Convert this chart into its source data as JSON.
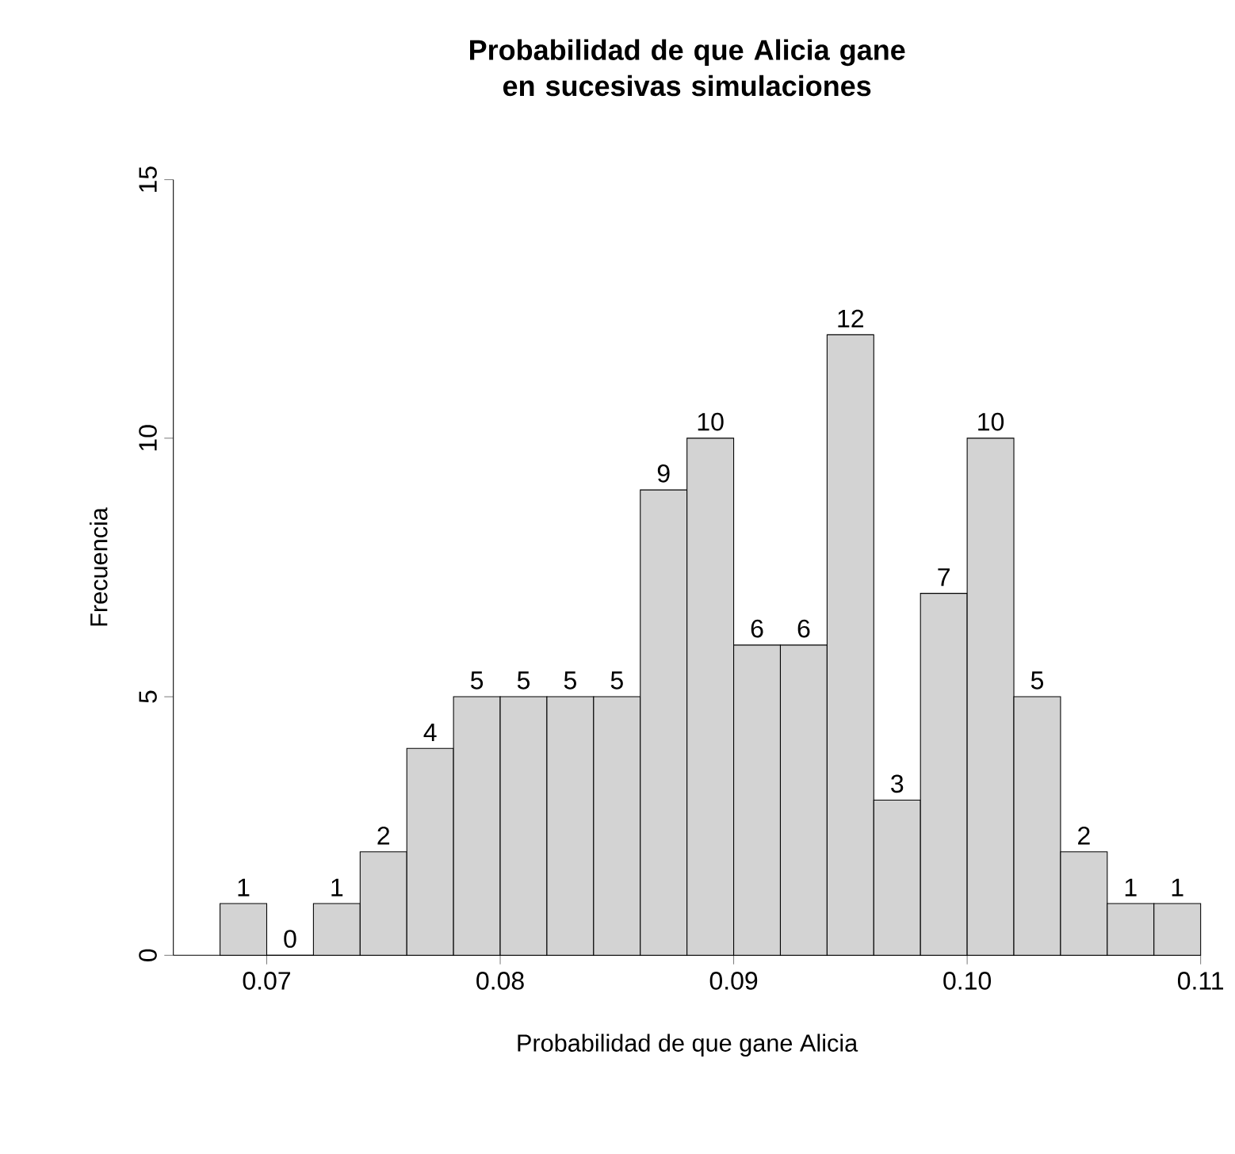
{
  "chart_data": {
    "type": "histogram",
    "title": "Probabilidad de que Alicia gane en sucesivas simulaciones",
    "xlabel": "Probabilidad de que gane Alicia",
    "ylabel": "Frecuencia",
    "bins": [
      0.068,
      0.07,
      0.072,
      0.074,
      0.076,
      0.078,
      0.08,
      0.082,
      0.084,
      0.086,
      0.088,
      0.09,
      0.092,
      0.094,
      0.096,
      0.098,
      0.1,
      0.102,
      0.104,
      0.106,
      0.108,
      0.11
    ],
    "values": [
      1,
      0,
      1,
      2,
      4,
      5,
      5,
      5,
      5,
      9,
      10,
      6,
      6,
      12,
      3,
      7,
      10,
      5,
      2,
      1,
      1
    ],
    "color": "#d3d3d3",
    "xlim": [
      0.066,
      0.11
    ],
    "ylim": [
      0,
      15
    ],
    "xticks": [
      {
        "value": 0.07,
        "label": "0.07"
      },
      {
        "value": 0.08,
        "label": "0.08"
      },
      {
        "value": 0.09,
        "label": "0.09"
      },
      {
        "value": 0.1,
        "label": "0.10"
      },
      {
        "value": 0.11,
        "label": "0.11"
      }
    ],
    "yticks": [
      0,
      5,
      10,
      15
    ],
    "data_labels": true,
    "grid": false
  }
}
